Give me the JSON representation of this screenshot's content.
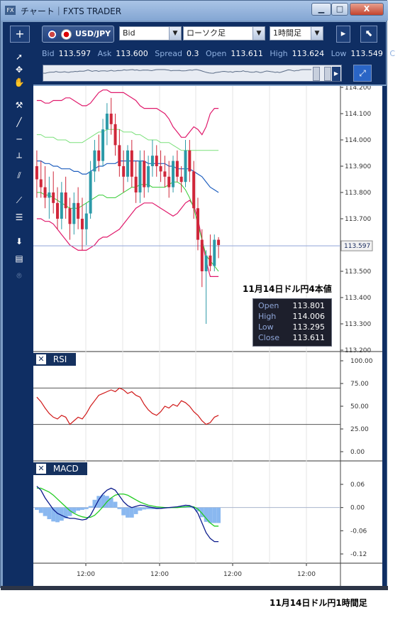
{
  "window": {
    "title": "チャート｜FXTS TRADER",
    "icon_label": "FX",
    "minimize": "▁",
    "maximize": "□",
    "close": "X"
  },
  "toolbar": {
    "add_label": "+",
    "symbol": "USD/JPY",
    "price_type": "Bid",
    "chart_type": "ローソク足",
    "timeframe": "1時間足"
  },
  "quote": {
    "bid_label": "Bid",
    "bid": "113.597",
    "ask_label": "Ask",
    "ask": "113.600",
    "spread_label": "Spread",
    "spread": "0.3",
    "open_label": "Open",
    "open": "113.611",
    "high_label": "High",
    "high": "113.624",
    "low_label": "Low",
    "low": "113.549",
    "close_label_partial": "C"
  },
  "ohlc_box": {
    "open_label": "Open",
    "open": "113.801",
    "high_label": "High",
    "high": "114.006",
    "low_label": "Low",
    "low": "113.295",
    "close_label": "Close",
    "close": "113.611"
  },
  "annotations": {
    "chart_note": "11月14日ドル円4本値",
    "caption": "11月14日ドル円1時間足"
  },
  "panels": {
    "rsi": "RSI",
    "macd": "MACD",
    "close_symbol": "✕"
  },
  "current_price_tag": "113.597",
  "colors": {
    "chrome_dark": "#0f2e63",
    "bollinger": "#e0196b",
    "ma_mid": "#1f5fbf",
    "ma_green": "#33cc33",
    "candle": "#d0273a",
    "rsi_line": "#d01818",
    "macd_line": "#0a1a8c",
    "signal_line": "#22cc22",
    "histogram": "#8ab8f0"
  },
  "chart_data": [
    {
      "type": "candlestick",
      "title": "",
      "ylim": [
        113.2,
        114.2
      ],
      "yticks": [
        "114.200",
        "114.100",
        "114.000",
        "113.900",
        "113.800",
        "113.700",
        "113.600",
        "113.500",
        "113.400",
        "113.300",
        "113.200"
      ],
      "xticks": [
        "12:00",
        "12:00",
        "12:00",
        "12:00"
      ],
      "current_price": 113.597,
      "candles": [
        {
          "o": 113.9,
          "h": 113.96,
          "l": 113.78,
          "c": 113.85
        },
        {
          "o": 113.85,
          "h": 113.92,
          "l": 113.78,
          "c": 113.82
        },
        {
          "o": 113.82,
          "h": 113.9,
          "l": 113.74,
          "c": 113.78
        },
        {
          "o": 113.78,
          "h": 113.86,
          "l": 113.7,
          "c": 113.8
        },
        {
          "o": 113.8,
          "h": 113.88,
          "l": 113.72,
          "c": 113.76
        },
        {
          "o": 113.76,
          "h": 113.82,
          "l": 113.66,
          "c": 113.7
        },
        {
          "o": 113.7,
          "h": 113.84,
          "l": 113.66,
          "c": 113.8
        },
        {
          "o": 113.8,
          "h": 113.86,
          "l": 113.7,
          "c": 113.74
        },
        {
          "o": 113.74,
          "h": 113.78,
          "l": 113.62,
          "c": 113.68
        },
        {
          "o": 113.68,
          "h": 113.8,
          "l": 113.64,
          "c": 113.76
        },
        {
          "o": 113.76,
          "h": 113.82,
          "l": 113.66,
          "c": 113.7
        },
        {
          "o": 113.7,
          "h": 113.78,
          "l": 113.58,
          "c": 113.66
        },
        {
          "o": 113.66,
          "h": 113.76,
          "l": 113.6,
          "c": 113.72
        },
        {
          "o": 113.72,
          "h": 113.92,
          "l": 113.7,
          "c": 113.88
        },
        {
          "o": 113.88,
          "h": 114.0,
          "l": 113.84,
          "c": 113.96
        },
        {
          "o": 113.96,
          "h": 114.02,
          "l": 113.88,
          "c": 113.92
        },
        {
          "o": 113.92,
          "h": 114.08,
          "l": 113.9,
          "c": 114.04
        },
        {
          "o": 114.04,
          "h": 114.14,
          "l": 113.98,
          "c": 114.1
        },
        {
          "o": 114.1,
          "h": 114.16,
          "l": 114.02,
          "c": 114.06
        },
        {
          "o": 114.06,
          "h": 114.1,
          "l": 113.94,
          "c": 113.98
        },
        {
          "o": 113.98,
          "h": 114.04,
          "l": 113.86,
          "c": 113.9
        },
        {
          "o": 113.9,
          "h": 113.96,
          "l": 113.8,
          "c": 113.86
        },
        {
          "o": 113.86,
          "h": 113.98,
          "l": 113.84,
          "c": 113.96
        },
        {
          "o": 113.96,
          "h": 114.0,
          "l": 113.82,
          "c": 113.86
        },
        {
          "o": 113.86,
          "h": 113.92,
          "l": 113.76,
          "c": 113.8
        },
        {
          "o": 113.8,
          "h": 113.96,
          "l": 113.76,
          "c": 113.92
        },
        {
          "o": 113.92,
          "h": 113.96,
          "l": 113.78,
          "c": 113.82
        },
        {
          "o": 113.82,
          "h": 113.94,
          "l": 113.8,
          "c": 113.9
        },
        {
          "o": 113.9,
          "h": 114.0,
          "l": 113.86,
          "c": 113.94
        },
        {
          "o": 113.94,
          "h": 113.98,
          "l": 113.86,
          "c": 113.9
        },
        {
          "o": 113.9,
          "h": 113.96,
          "l": 113.84,
          "c": 113.88
        },
        {
          "o": 113.88,
          "h": 113.94,
          "l": 113.82,
          "c": 113.86
        },
        {
          "o": 113.86,
          "h": 113.92,
          "l": 113.78,
          "c": 113.82
        },
        {
          "o": 113.82,
          "h": 113.94,
          "l": 113.8,
          "c": 113.92
        },
        {
          "o": 113.92,
          "h": 113.96,
          "l": 113.84,
          "c": 113.86
        },
        {
          "o": 113.86,
          "h": 113.9,
          "l": 113.8,
          "c": 113.84
        },
        {
          "o": 113.84,
          "h": 114.0,
          "l": 113.82,
          "c": 113.96
        },
        {
          "o": 113.96,
          "h": 114.0,
          "l": 113.84,
          "c": 113.88
        },
        {
          "o": 113.88,
          "h": 113.92,
          "l": 113.7,
          "c": 113.74
        },
        {
          "o": 113.74,
          "h": 113.78,
          "l": 113.58,
          "c": 113.62
        },
        {
          "o": 113.62,
          "h": 113.66,
          "l": 113.44,
          "c": 113.5
        },
        {
          "o": 113.5,
          "h": 113.58,
          "l": 113.3,
          "c": 113.56
        },
        {
          "o": 113.56,
          "h": 113.64,
          "l": 113.5,
          "c": 113.52
        },
        {
          "o": 113.52,
          "h": 113.64,
          "l": 113.5,
          "c": 113.62
        },
        {
          "o": 113.62,
          "h": 113.63,
          "l": 113.55,
          "c": 113.6
        }
      ],
      "bollinger_upper": [
        114.15,
        114.15,
        114.14,
        114.14,
        114.15,
        114.15,
        114.15,
        114.16,
        114.16,
        114.15,
        114.14,
        114.13,
        114.13,
        114.14,
        114.16,
        114.18,
        114.19,
        114.19,
        114.18,
        114.18,
        114.18,
        114.18,
        114.17,
        114.16,
        114.15,
        114.13,
        114.12,
        114.12,
        114.12,
        114.12,
        114.11,
        114.1,
        114.08,
        114.05,
        114.03,
        114.01,
        114.01,
        114.03,
        114.05,
        114.04,
        114.02,
        114.05,
        114.1,
        114.12,
        114.12
      ],
      "ma_center": [
        113.92,
        113.92,
        113.91,
        113.91,
        113.9,
        113.9,
        113.89,
        113.89,
        113.89,
        113.88,
        113.88,
        113.87,
        113.87,
        113.88,
        113.89,
        113.9,
        113.9,
        113.91,
        113.91,
        113.91,
        113.92,
        113.92,
        113.92,
        113.92,
        113.92,
        113.92,
        113.92,
        113.91,
        113.91,
        113.91,
        113.91,
        113.91,
        113.9,
        113.9,
        113.89,
        113.89,
        113.89,
        113.89,
        113.88,
        113.87,
        113.86,
        113.84,
        113.82,
        113.81,
        113.8
      ],
      "green_upper": [
        114.02,
        114.02,
        114.01,
        114.01,
        114.01,
        114.0,
        114.0,
        114.0,
        113.99,
        113.99,
        113.99,
        113.99,
        114.0,
        114.01,
        114.02,
        114.03,
        114.03,
        114.04,
        114.04,
        114.04,
        114.04,
        114.03,
        114.03,
        114.03,
        114.02,
        114.02,
        114.01,
        114.0,
        114.0,
        114.0,
        113.99,
        113.99,
        113.99,
        113.98,
        113.97,
        113.96,
        113.96,
        113.96,
        113.96,
        113.96,
        113.96,
        113.96,
        113.96,
        113.96,
        113.96
      ],
      "green_lower": [
        113.8,
        113.8,
        113.79,
        113.79,
        113.78,
        113.77,
        113.76,
        113.75,
        113.74,
        113.74,
        113.74,
        113.75,
        113.76,
        113.77,
        113.78,
        113.79,
        113.79,
        113.78,
        113.78,
        113.78,
        113.79,
        113.8,
        113.81,
        113.82,
        113.82,
        113.83,
        113.83,
        113.83,
        113.82,
        113.82,
        113.82,
        113.82,
        113.83,
        113.84,
        113.84,
        113.83,
        113.81,
        113.78,
        113.74,
        113.68,
        113.62,
        113.56,
        113.54,
        113.52,
        113.5
      ],
      "bollinger_lower": [
        113.7,
        113.7,
        113.69,
        113.69,
        113.68,
        113.66,
        113.64,
        113.62,
        113.6,
        113.59,
        113.58,
        113.58,
        113.58,
        113.59,
        113.6,
        113.62,
        113.63,
        113.63,
        113.64,
        113.65,
        113.66,
        113.68,
        113.7,
        113.72,
        113.74,
        113.75,
        113.76,
        113.76,
        113.76,
        113.75,
        113.74,
        113.73,
        113.72,
        113.71,
        113.72,
        113.74,
        113.76,
        113.77,
        113.75,
        113.7,
        113.62,
        113.54,
        113.48,
        113.48,
        113.48
      ]
    },
    {
      "type": "line",
      "title": "RSI",
      "ylim": [
        0,
        100
      ],
      "yticks": [
        "100.00",
        "75.00",
        "50.00",
        "25.00",
        "0.00"
      ],
      "levels": [
        70,
        30
      ],
      "series": [
        {
          "values": [
            60,
            55,
            48,
            42,
            38,
            36,
            40,
            38,
            30,
            34,
            38,
            36,
            42,
            50,
            56,
            62,
            64,
            66,
            68,
            66,
            70,
            68,
            64,
            66,
            62,
            60,
            52,
            46,
            42,
            40,
            44,
            50,
            48,
            52,
            50,
            56,
            54,
            50,
            44,
            40,
            34,
            30,
            32,
            38,
            40
          ]
        }
      ]
    },
    {
      "type": "line",
      "title": "MACD",
      "ylim": [
        -0.13,
        0.08
      ],
      "yticks": [
        "0.06",
        "0.00",
        "-0.06",
        "-0.12"
      ],
      "series": [
        {
          "values": [
            0.055,
            0.045,
            0.025,
            0.01,
            -0.005,
            -0.015,
            -0.02,
            -0.025,
            -0.028,
            -0.028,
            -0.03,
            -0.032,
            -0.03,
            -0.02,
            0.0,
            0.02,
            0.035,
            0.045,
            0.05,
            0.045,
            0.03,
            0.015,
            0.005,
            0.0,
            0.003,
            0.006,
            0.005,
            0.002,
            0.0,
            -0.002,
            -0.002,
            -0.001,
            0.0,
            0.001,
            0.002,
            0.004,
            0.006,
            0.005,
            0.0,
            -0.015,
            -0.04,
            -0.065,
            -0.08,
            -0.088,
            -0.088
          ]
        },
        {
          "values": [
            0.05,
            0.05,
            0.045,
            0.04,
            0.032,
            0.022,
            0.012,
            0.002,
            -0.008,
            -0.015,
            -0.02,
            -0.024,
            -0.026,
            -0.025,
            -0.02,
            -0.01,
            0.002,
            0.015,
            0.025,
            0.032,
            0.035,
            0.035,
            0.032,
            0.026,
            0.02,
            0.014,
            0.01,
            0.006,
            0.004,
            0.002,
            0.001,
            0.0,
            0.0,
            0.0,
            0.0,
            0.001,
            0.002,
            0.003,
            0.002,
            -0.004,
            -0.015,
            -0.028,
            -0.04,
            -0.048,
            -0.048
          ]
        }
      ],
      "histogram": [
        -0.006,
        -0.014,
        -0.022,
        -0.03,
        -0.036,
        -0.038,
        -0.034,
        -0.028,
        -0.022,
        -0.014,
        -0.008,
        -0.006,
        -0.004,
        0.004,
        0.02,
        0.03,
        0.033,
        0.03,
        0.025,
        0.015,
        -0.004,
        -0.02,
        -0.026,
        -0.026,
        -0.017,
        -0.008,
        -0.005,
        -0.004,
        -0.004,
        -0.004,
        -0.003,
        -0.001,
        0.0,
        0.001,
        0.002,
        0.003,
        0.004,
        0.002,
        -0.002,
        -0.01,
        -0.025,
        -0.037,
        -0.04,
        -0.04,
        -0.04
      ]
    }
  ]
}
